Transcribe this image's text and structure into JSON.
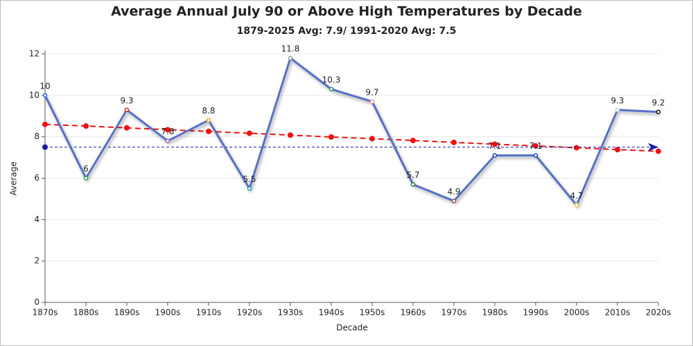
{
  "chart_data": {
    "type": "line",
    "title": "Average Annual July 90 or Above High Temperatures by Decade",
    "subtitle": "1879-2025 Avg: 7.9/ 1991-2020 Avg: 7.5",
    "x_label": "Decade",
    "y_label": "Average",
    "categories": [
      "1870s",
      "1880s",
      "1890s",
      "1900s",
      "1910s",
      "1920s",
      "1930s",
      "1940s",
      "1950s",
      "1960s",
      "1970s",
      "1980s",
      "1990s",
      "2000s",
      "2010s",
      "2020s"
    ],
    "ylim": [
      0,
      12
    ],
    "yticks": [
      0,
      2,
      4,
      6,
      8,
      10,
      12
    ],
    "grid": true,
    "series": [
      {
        "color": "#5470c6",
        "line_style": "solid",
        "data_labels": true,
        "values": [
          10,
          6,
          9.3,
          7.8,
          8.8,
          5.5,
          11.8,
          10.3,
          9.7,
          5.7,
          4.9,
          7.1,
          7.1,
          4.7,
          9.3,
          9.2
        ],
        "marker_colors": [
          "#3a5bd9",
          "#2e9e3e",
          "#d62728",
          "#9467bd",
          "#ff9f1a",
          "#17a2a2",
          "#999999",
          "#2a8f6a",
          "#e8a0a0",
          "#2e7d32",
          "#8c564b",
          "#1f3fbf",
          "#1f3fbf",
          "#e6d44a",
          "#cccccc",
          "#111111"
        ]
      },
      {
        "color": "#ee1111",
        "line_style": "dashed",
        "markers": "all",
        "values": [
          8.6,
          8.52,
          8.43,
          8.34,
          8.26,
          8.17,
          8.08,
          7.99,
          7.91,
          7.82,
          7.73,
          7.64,
          7.56,
          7.47,
          7.38,
          7.3
        ]
      },
      {
        "color": "#1a1aa6",
        "line_style": "dashed",
        "markers": "ends",
        "values": [
          7.5,
          7.5,
          7.5,
          7.5,
          7.5,
          7.5,
          7.5,
          7.5,
          7.5,
          7.5,
          7.5,
          7.5,
          7.5,
          7.5,
          7.5,
          7.5
        ]
      }
    ]
  }
}
